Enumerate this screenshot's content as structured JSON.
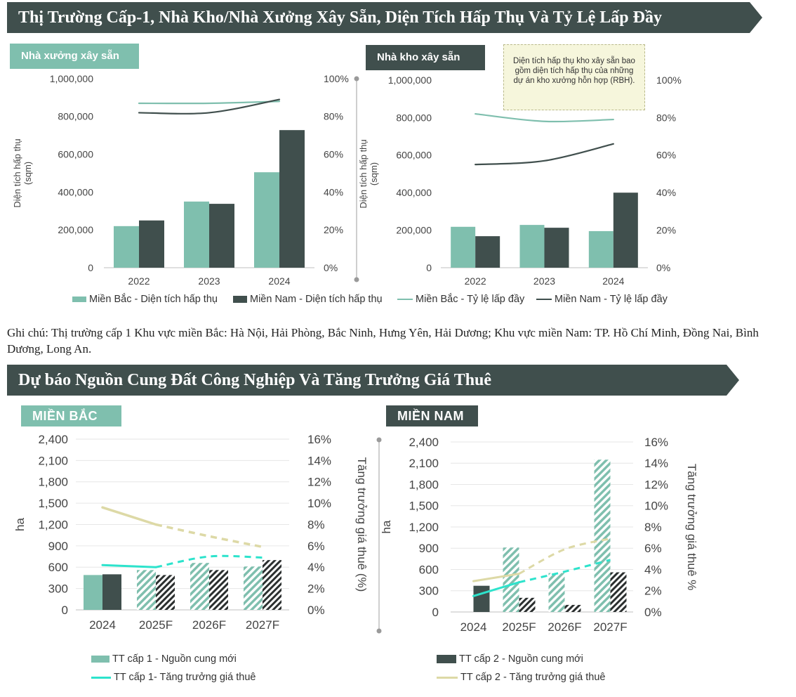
{
  "section1": {
    "title": "Thị Trường Cấp-1, Nhà Kho/Nhà Xưởng Xây Sẵn, Diện Tích Hấp Thụ Và Tỷ Lệ Lấp Đầy",
    "left_tag": "Nhà xưởng xây sẵn",
    "right_tag": "Nhà kho xây sẵn",
    "callout": "Diện tích hấp thụ kho xây sẵn bao gồm diện tích hấp thụ của những dự án kho xưởng hỗn hợp (RBH).",
    "legend": [
      "Miền Bắc - Diện tích hấp thụ",
      "Miền Nam - Diện tích hấp thụ",
      "Miền Bắc - Tỷ lệ lấp đầy",
      "Miền Nam - Tỷ lệ lấp đầy"
    ]
  },
  "note": "Ghi chú: Thị trường cấp 1 Khu vực miền Bắc: Hà Nội, Hải Phòng, Bắc Ninh, Hưng Yên, Hải Dương; Khu vực miền Nam: TP. Hồ Chí Minh, Đồng Nai, Bình Dương, Long An.",
  "section2": {
    "title": "Dự báo Nguồn Cung Đất Công Nghiệp Và Tăng Trưởng Giá Thuê",
    "left_tag": "MIỀN BẮC",
    "right_tag": "MIỀN NAM",
    "legend_left": [
      "TT cấp 1 -  Nguồn cung mới",
      "TT cấp 1-  Tăng trưởng giá thuê"
    ],
    "legend_right": [
      "TT cấp 2 - Nguồn cung mới",
      "TT cấp 2 -  Tăng trưởng giá thuê"
    ]
  },
  "colors": {
    "dark": "#404f4d",
    "teal": "#7fbfae",
    "line_light": "#7fbfae",
    "line_dark": "#404f4d",
    "cyan": "#2de3cc",
    "beige": "#ddd9a6",
    "banner": "#404f4d"
  },
  "chart_data": [
    {
      "type": "bar",
      "categories": [
        "2022",
        "2023",
        "2024"
      ],
      "ylabel": "Diện tích hấp thụ\n(sqm)",
      "ylim": [
        0,
        1000000
      ],
      "y2lim": [
        0,
        100
      ],
      "y_ticks": [
        "0",
        "200,000",
        "400,000",
        "600,000",
        "800,000",
        "1,000,000"
      ],
      "y2_ticks": [
        "0%",
        "20%",
        "40%",
        "60%",
        "80%",
        "100%"
      ],
      "series": [
        {
          "name": "Miền Bắc - Diện tích hấp thụ",
          "kind": "bar",
          "values": [
            220000,
            350000,
            505000
          ]
        },
        {
          "name": "Miền Nam - Diện tích hấp thụ",
          "kind": "bar",
          "values": [
            250000,
            338000,
            728000
          ]
        },
        {
          "name": "Miền Bắc - Tỷ lệ lấp đầy",
          "kind": "line",
          "axis": "right",
          "values": [
            87,
            87,
            88
          ]
        },
        {
          "name": "Miền Nam - Tỷ lệ lấp đầy",
          "kind": "line",
          "axis": "right",
          "values": [
            82,
            82,
            89
          ]
        }
      ]
    },
    {
      "type": "bar",
      "categories": [
        "2022",
        "2023",
        "2024"
      ],
      "ylabel": "Diện tích hấp thụ\n(sqm)",
      "ylim": [
        0,
        1000000
      ],
      "y2lim": [
        0,
        100
      ],
      "y_ticks": [
        "0",
        "200,000",
        "400,000",
        "600,000",
        "800,000",
        "1,000,000"
      ],
      "y2_ticks": [
        "0%",
        "20%",
        "40%",
        "60%",
        "80%",
        "100%"
      ],
      "series": [
        {
          "name": "Miền Bắc - Diện tích hấp thụ",
          "kind": "bar",
          "values": [
            218000,
            228000,
            195000
          ]
        },
        {
          "name": "Miền Nam - Diện tích hấp thụ",
          "kind": "bar",
          "values": [
            168000,
            213000,
            400000
          ]
        },
        {
          "name": "Miền Bắc - Tỷ lệ lấp đầy",
          "kind": "line",
          "axis": "right",
          "values": [
            82,
            78,
            79
          ]
        },
        {
          "name": "Miền Nam - Tỷ lệ lấp đầy",
          "kind": "line",
          "axis": "right",
          "values": [
            55,
            57,
            66
          ]
        }
      ]
    },
    {
      "type": "bar",
      "categories": [
        "2024",
        "2025F",
        "2026F",
        "2027F"
      ],
      "ylabel": "ha",
      "y2label": "Tăng trưởng giá thuê (%)",
      "ylim": [
        0,
        2400
      ],
      "y2lim": [
        0,
        16
      ],
      "y_ticks": [
        "0",
        "300",
        "600",
        "900",
        "1,200",
        "1,500",
        "1,800",
        "2,100",
        "2,400"
      ],
      "y2_ticks": [
        "0%",
        "2%",
        "4%",
        "6%",
        "8%",
        "10%",
        "12%",
        "14%",
        "16%"
      ],
      "series": [
        {
          "name": "TT cấp 1 -  Nguồn cung mới",
          "kind": "bar",
          "values": [
            490,
            560,
            660,
            610
          ]
        },
        {
          "name": "TT cấp 2",
          "kind": "bar",
          "values": [
            500,
            490,
            560,
            700
          ]
        },
        {
          "name": "TT cấp 1-  Tăng trưởng giá thuê",
          "kind": "line",
          "axis": "right",
          "values": [
            4.2,
            4.0,
            5.0,
            4.9
          ]
        },
        {
          "name": "TT cấp 2",
          "kind": "line",
          "axis": "right",
          "values": [
            9.6,
            8.0,
            6.9,
            5.9
          ]
        }
      ]
    },
    {
      "type": "bar",
      "categories": [
        "2024",
        "2025F",
        "2026F",
        "2027F"
      ],
      "ylabel": "ha",
      "y2label": "Tăng trưởng giá thuê %",
      "ylim": [
        0,
        2400
      ],
      "y2lim": [
        0,
        16
      ],
      "y_ticks": [
        "0",
        "300",
        "600",
        "900",
        "1,200",
        "1,500",
        "1,800",
        "2,100",
        "2,400"
      ],
      "y2_ticks": [
        "0%",
        "2%",
        "4%",
        "6%",
        "8%",
        "10%",
        "12%",
        "14%",
        "16%"
      ],
      "series": [
        {
          "name": "TT cấp 1",
          "kind": "bar",
          "values": [
            0,
            910,
            550,
            2150
          ]
        },
        {
          "name": "TT cấp 2 - Nguồn cung mới",
          "kind": "bar",
          "values": [
            370,
            200,
            100,
            560
          ]
        },
        {
          "name": "TT cấp 1",
          "kind": "line",
          "axis": "right",
          "values": [
            1.5,
            2.8,
            3.8,
            4.9
          ]
        },
        {
          "name": "TT cấp 2 -  Tăng trưởng giá thuê",
          "kind": "line",
          "axis": "right",
          "values": [
            2.9,
            3.6,
            5.9,
            6.9
          ]
        }
      ]
    }
  ]
}
